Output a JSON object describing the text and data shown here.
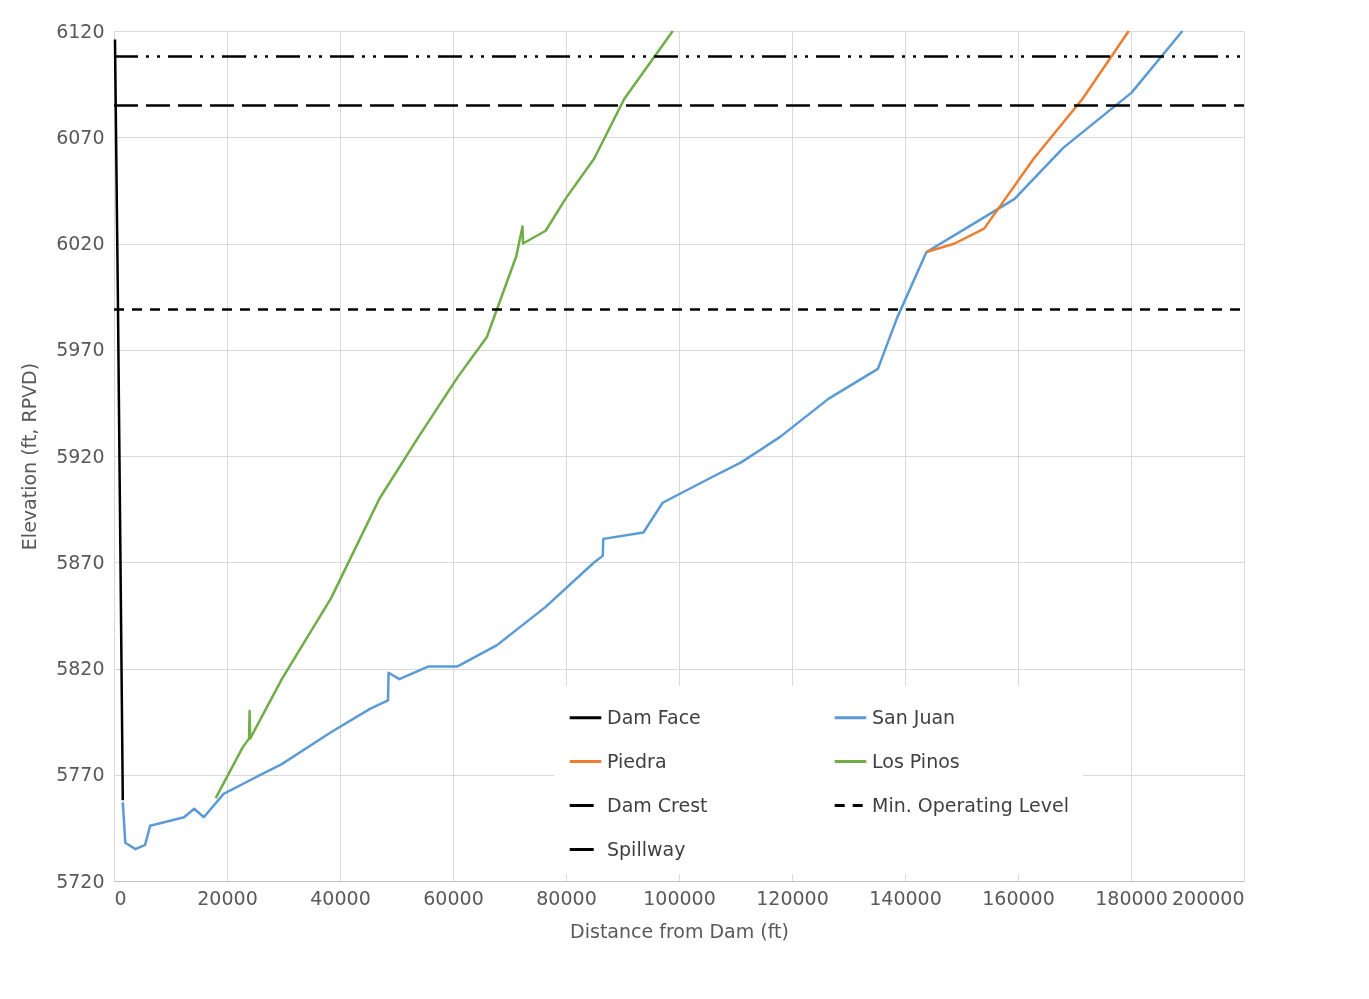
{
  "chart_data": {
    "type": "line",
    "xlabel": "Distance from Dam (ft)",
    "ylabel": "Elevation (ft, RPVD)",
    "xlim": [
      0,
      200000
    ],
    "xticks": [
      0,
      20000,
      40000,
      60000,
      80000,
      100000,
      120000,
      140000,
      160000,
      180000,
      200000
    ],
    "ylim": [
      5720,
      6120
    ],
    "yticks": [
      5720,
      5770,
      5820,
      5870,
      5920,
      5970,
      6020,
      6070,
      6120
    ],
    "grid": true,
    "legend": "bottom right",
    "marker": "none",
    "series": [
      {
        "name": "Dam Face",
        "color": "#000000",
        "line_style": "solid",
        "x": [
          173,
          690,
          1037,
          1383,
          1556
        ],
        "values": [
          6116,
          5994,
          5900,
          5806,
          5758
        ]
      },
      {
        "name": "San Juan",
        "color": "#5b9bd5",
        "line_style": "solid",
        "x": [
          1556,
          2000,
          3800,
          5500,
          6400,
          12400,
          14200,
          15900,
          19400,
          24500,
          29700,
          38400,
          45300,
          48500,
          48600,
          50500,
          55700,
          60800,
          67800,
          76400,
          85000,
          86500,
          86600,
          93700,
          97100,
          105800,
          111000,
          117900,
          126500,
          135200,
          138600,
          143800,
          150700,
          159400,
          168000,
          180100,
          189100
        ],
        "values": [
          5757,
          5738,
          5735,
          5737,
          5746,
          5750,
          5754,
          5750,
          5761,
          5768,
          5775,
          5790,
          5801,
          5805,
          5818,
          5815,
          5821,
          5821,
          5831,
          5849,
          5870,
          5873,
          5881,
          5884,
          5898,
          5910,
          5917,
          5929,
          5947,
          5961,
          5985,
          6016,
          6027,
          6041,
          6065,
          6091,
          6120
        ]
      },
      {
        "name": "Piedra",
        "color": "#ed7d31",
        "line_style": "solid",
        "x": [
          143800,
          148800,
          154000,
          162800,
          171400,
          179600
        ],
        "values": [
          6016,
          6020,
          6027,
          6060,
          6088,
          6120
        ]
      },
      {
        "name": "Los Pinos",
        "color": "#70ad47",
        "line_style": "solid",
        "x": [
          18000,
          22800,
          23900,
          24000,
          24100,
          29700,
          38400,
          47000,
          53900,
          60800,
          66000,
          71200,
          72300,
          72400,
          76400,
          79900,
          85000,
          90300,
          98900
        ],
        "values": [
          5759,
          5783,
          5787,
          5800,
          5787,
          5815,
          5853,
          5900,
          5929,
          5957,
          5976,
          6014,
          6028,
          6020,
          6026,
          6041,
          6060,
          6088,
          6120
        ]
      },
      {
        "name": "Dam Crest",
        "color": "#000000",
        "line_style": "dashdot",
        "x": [
          0,
          200000
        ],
        "values": [
          6108,
          6108
        ]
      },
      {
        "name": "Min. Operating Level",
        "color": "#000000",
        "line_style": "dashed",
        "x": [
          0,
          200000
        ],
        "values": [
          5989,
          5989
        ]
      },
      {
        "name": "Spillway",
        "color": "#000000",
        "line_style": "longdash",
        "x": [
          0,
          200000
        ],
        "values": [
          6085,
          6085
        ]
      }
    ]
  }
}
